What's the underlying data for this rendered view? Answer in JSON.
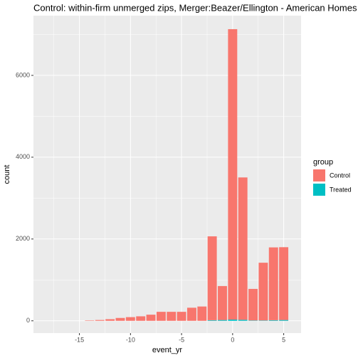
{
  "chart_data": {
    "type": "bar",
    "title": "Control: within-firm unmerged zips, Merger:Beazer/Ellington - American Homes",
    "x_label": "event_yr",
    "y_label": "count",
    "legend_title": "group",
    "x": [
      -14,
      -13,
      -12,
      -11,
      -10,
      -9,
      -8,
      -7,
      -6,
      -5,
      -4,
      -3,
      -2,
      -1,
      0,
      1,
      2,
      3,
      4,
      5
    ],
    "series": [
      {
        "name": "Control",
        "color": "#f8766d",
        "values": [
          10,
          20,
          40,
          70,
          90,
          110,
          150,
          220,
          220,
          220,
          320,
          350,
          2050,
          830,
          7100,
          3480,
          770,
          1410,
          1780,
          1780
        ]
      },
      {
        "name": "Treated",
        "color": "#00bfc4",
        "values": [
          0,
          0,
          0,
          0,
          0,
          0,
          0,
          0,
          0,
          0,
          0,
          0,
          15,
          20,
          30,
          25,
          10,
          10,
          15,
          20
        ]
      }
    ],
    "stacked": true,
    "xlim": [
      -19.5,
      6.7
    ],
    "xticks": [
      -15,
      -10,
      -5,
      0,
      5
    ],
    "xticks_minor": [
      -17.5,
      -12.5,
      -7.5,
      -2.5,
      2.5
    ],
    "ylim": [
      -300,
      7460
    ],
    "yticks": [
      0,
      2000,
      4000,
      6000
    ],
    "yticks_minor": [
      1000,
      3000,
      5000,
      7000
    ],
    "grid": true,
    "legend": "right"
  }
}
